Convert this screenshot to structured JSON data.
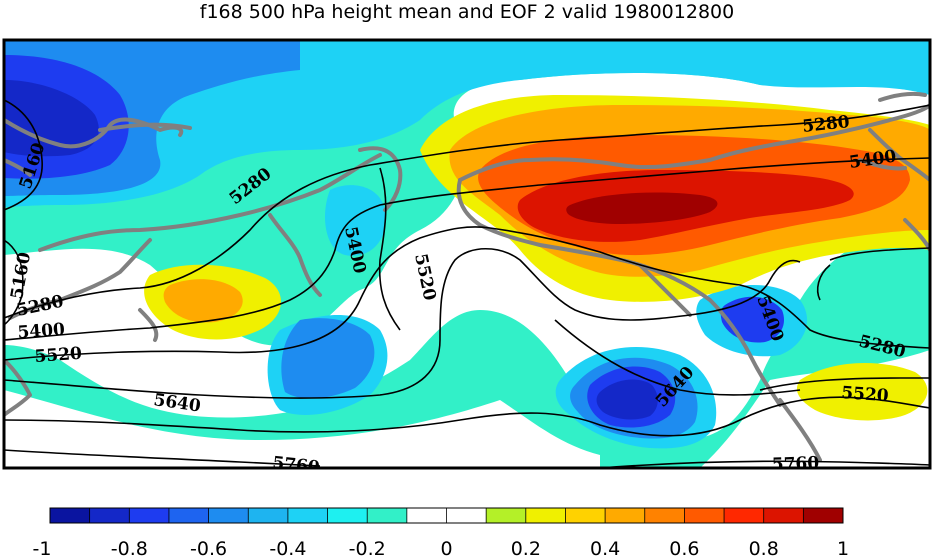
{
  "title": "f168 500 hPa height mean and EOF 2 valid 1980012800",
  "colorbar": {
    "ticks": [
      "-1",
      "-0.8",
      "-0.6",
      "-0.4",
      "-0.2",
      "0",
      "0.2",
      "0.4",
      "0.6",
      "0.8",
      "1"
    ],
    "bins": [
      "#0a14a0",
      "#1428c8",
      "#1e3cf0",
      "#1e64f0",
      "#1e8cf0",
      "#1eb4f0",
      "#1ed2f5",
      "#1ef0f0",
      "#32f0c8",
      "#ffffff",
      "#ffffff",
      "#b4f028",
      "#f0f000",
      "#ffd200",
      "#ffaa00",
      "#ff8200",
      "#ff5a00",
      "#ff2800",
      "#dc1400",
      "#a00000"
    ]
  },
  "contours": [
    "5160",
    "5160",
    "5280",
    "5280",
    "5280",
    "5400",
    "5400",
    "5400",
    "5400",
    "5520",
    "5520",
    "5520",
    "5640",
    "5640",
    "5760",
    "5760",
    "5280",
    "5520"
  ],
  "colors": {
    "coastline": "#808080",
    "contour": "#000000",
    "frame": "#000000"
  }
}
